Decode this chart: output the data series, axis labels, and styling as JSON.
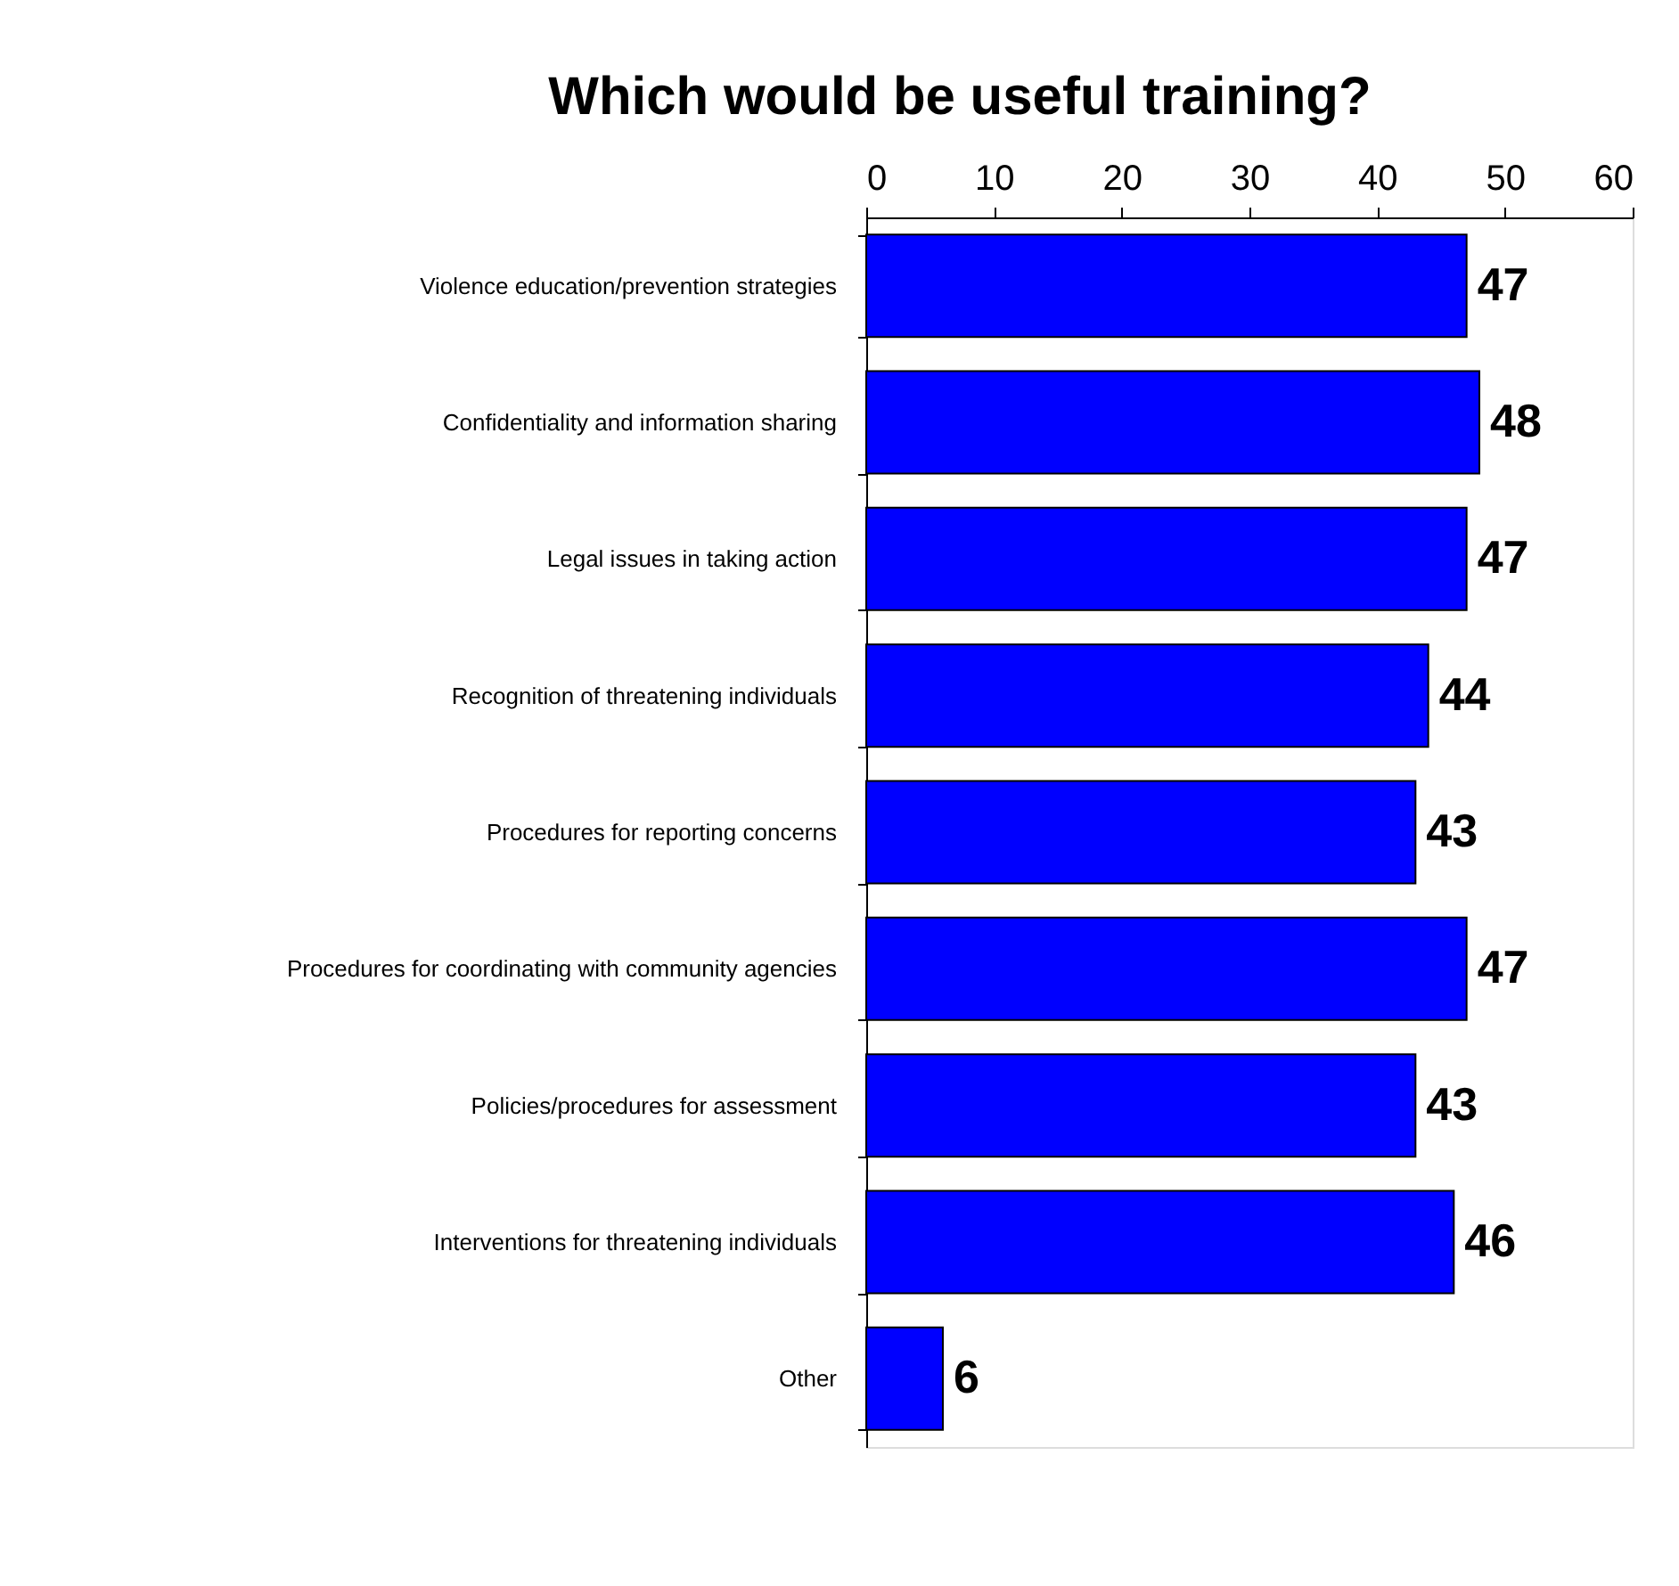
{
  "chart_data": {
    "type": "bar",
    "orientation": "horizontal",
    "title": "Which would be useful training?",
    "categories": [
      "Violence education/prevention strategies",
      "Confidentiality and information sharing",
      "Legal issues in taking action",
      "Recognition of threatening individuals",
      "Procedures for reporting concerns",
      "Procedures for coordinating with community agencies",
      "Policies/procedures for assessment",
      "Interventions for threatening individuals",
      "Other"
    ],
    "values": [
      47,
      48,
      47,
      44,
      43,
      47,
      43,
      46,
      6
    ],
    "color": "#0000ff",
    "xlim": [
      0,
      60
    ],
    "xticks": [
      0,
      10,
      20,
      30,
      40,
      50,
      60
    ],
    "grid": false,
    "data_labels": true
  }
}
